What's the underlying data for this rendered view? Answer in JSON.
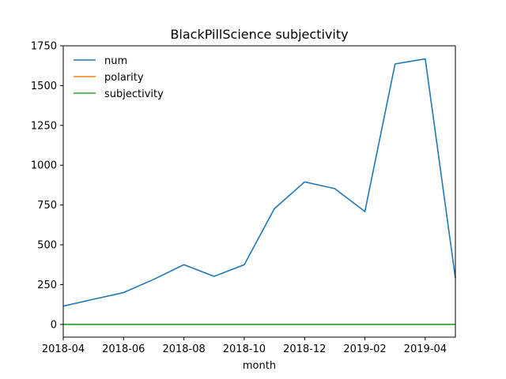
{
  "chart_data": {
    "type": "line",
    "title": "BlackPillScience subjectivity",
    "xlabel": "month",
    "ylabel": "",
    "x": [
      "2018-04",
      "2018-05",
      "2018-06",
      "2018-07",
      "2018-08",
      "2018-09",
      "2018-10",
      "2018-11",
      "2018-12",
      "2019-01",
      "2019-02",
      "2019-03",
      "2019-04",
      "2019-05"
    ],
    "x_ticks": [
      "2018-04",
      "2018-06",
      "2018-08",
      "2018-10",
      "2018-12",
      "2019-02",
      "2019-04"
    ],
    "y_ticks": [
      0,
      250,
      500,
      750,
      1000,
      1250,
      1500,
      1750
    ],
    "ylim": [
      -80,
      1750
    ],
    "grid": false,
    "legend_position": "top-left",
    "series": [
      {
        "name": "num",
        "color": "#1f77b4",
        "values": [
          115,
          158,
          200,
          283,
          375,
          302,
          375,
          727,
          895,
          853,
          709,
          1636,
          1668,
          290
        ]
      },
      {
        "name": "polarity",
        "color": "#ff7f0e",
        "values": [
          0.05,
          0.06,
          0.05,
          0.05,
          0.06,
          0.05,
          0.05,
          0.06,
          0.05,
          0.05,
          0.06,
          0.05,
          0.05,
          0.05
        ]
      },
      {
        "name": "subjectivity",
        "color": "#2ca02c",
        "values": [
          0.45,
          0.46,
          0.45,
          0.44,
          0.45,
          0.46,
          0.45,
          0.45,
          0.44,
          0.45,
          0.46,
          0.45,
          0.45,
          0.44
        ]
      }
    ]
  }
}
